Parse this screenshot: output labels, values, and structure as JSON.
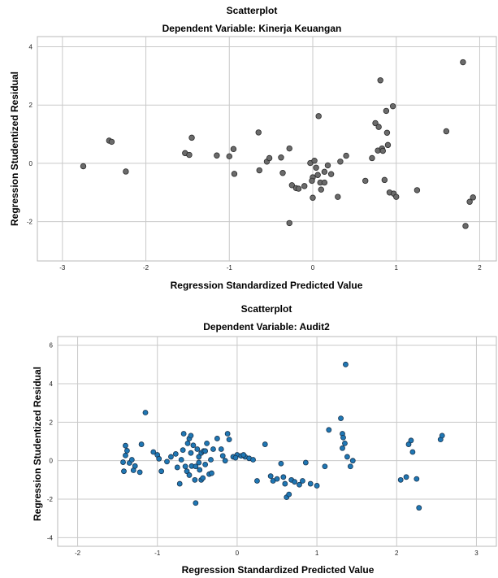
{
  "chart_data": [
    {
      "type": "scatter",
      "title": "Scatterplot",
      "subtitle": "Dependent Variable: Kinerja Keuangan",
      "xlabel": "Regression Standardized Predicted Value",
      "ylabel": "Regression Studentized Residual",
      "xlim": [
        -3.3,
        2.2
      ],
      "ylim": [
        -3.35,
        4.35
      ],
      "xticks": [
        -3,
        -2,
        -1,
        0,
        1,
        2
      ],
      "yticks": [
        -2,
        0,
        2,
        4
      ],
      "xtick_labels": [
        "-3",
        "-2",
        "-1",
        "0",
        "1",
        "2"
      ],
      "ytick_labels": [
        "-2",
        "0",
        "2",
        "4"
      ],
      "grid": true,
      "point_color": "#6b6b6b",
      "points": [
        [
          -2.75,
          -0.1
        ],
        [
          -2.44,
          0.78
        ],
        [
          -2.41,
          0.74
        ],
        [
          -2.24,
          -0.28
        ],
        [
          -1.53,
          0.35
        ],
        [
          -1.48,
          0.29
        ],
        [
          -1.45,
          0.88
        ],
        [
          -1.15,
          0.27
        ],
        [
          -1.0,
          0.24
        ],
        [
          -0.95,
          0.49
        ],
        [
          -0.94,
          -0.36
        ],
        [
          -0.65,
          1.06
        ],
        [
          -0.64,
          -0.24
        ],
        [
          -0.55,
          0.06
        ],
        [
          -0.52,
          0.18
        ],
        [
          -0.38,
          0.2
        ],
        [
          -0.36,
          -0.33
        ],
        [
          -0.28,
          0.51
        ],
        [
          -0.25,
          -0.75
        ],
        [
          -0.2,
          -0.85
        ],
        [
          -0.17,
          -0.87
        ],
        [
          -0.1,
          -0.78
        ],
        [
          -0.03,
          0.01
        ],
        [
          0.0,
          -0.48
        ],
        [
          0.0,
          -1.18
        ],
        [
          -0.01,
          -0.6
        ],
        [
          0.02,
          0.09
        ],
        [
          0.04,
          -0.15
        ],
        [
          0.06,
          -0.4
        ],
        [
          0.07,
          1.62
        ],
        [
          0.09,
          -0.66
        ],
        [
          0.1,
          -0.9
        ],
        [
          0.14,
          -0.66
        ],
        [
          0.14,
          -0.29
        ],
        [
          0.18,
          -0.07
        ],
        [
          0.22,
          -0.37
        ],
        [
          0.3,
          -1.15
        ],
        [
          0.33,
          0.06
        ],
        [
          0.4,
          0.26
        ],
        [
          0.63,
          -0.6
        ],
        [
          0.71,
          0.18
        ],
        [
          0.75,
          1.38
        ],
        [
          0.78,
          0.44
        ],
        [
          0.79,
          1.25
        ],
        [
          0.81,
          2.85
        ],
        [
          0.83,
          0.51
        ],
        [
          0.84,
          0.43
        ],
        [
          0.86,
          -0.57
        ],
        [
          0.88,
          1.8
        ],
        [
          0.89,
          1.05
        ],
        [
          0.9,
          0.63
        ],
        [
          0.92,
          -1.0
        ],
        [
          0.96,
          1.96
        ],
        [
          0.97,
          -1.04
        ],
        [
          1.0,
          -1.15
        ],
        [
          1.25,
          -0.92
        ],
        [
          1.6,
          1.1
        ],
        [
          1.8,
          3.47
        ],
        [
          1.83,
          -2.15
        ],
        [
          1.88,
          -1.32
        ],
        [
          1.92,
          -1.17
        ],
        [
          -0.28,
          -2.05
        ]
      ]
    },
    {
      "type": "scatter",
      "title": "Scatterplot",
      "subtitle": "Dependent Variable: Audit2",
      "xlabel": "Regression Standardized Predicted Value",
      "ylabel": "Regression Studentized Residual",
      "xlim": [
        -2.25,
        3.25
      ],
      "ylim": [
        -4.45,
        6.45
      ],
      "xticks": [
        -2,
        -1,
        0,
        1,
        2,
        3
      ],
      "yticks": [
        -4,
        -2,
        0,
        2,
        4,
        6
      ],
      "xtick_labels": [
        "-2",
        "-1",
        "0",
        "1",
        "2",
        "3"
      ],
      "ytick_labels": [
        "-4",
        "-2",
        "0",
        "2",
        "4",
        "6"
      ],
      "grid": true,
      "point_color": "#1f77b4",
      "points": [
        [
          -1.43,
          -0.08
        ],
        [
          -1.4,
          0.27
        ],
        [
          -1.38,
          0.52
        ],
        [
          -1.35,
          -0.12
        ],
        [
          -1.32,
          0.05
        ],
        [
          -1.3,
          -0.5
        ],
        [
          -1.28,
          -0.28
        ],
        [
          -1.4,
          0.78
        ],
        [
          -1.42,
          -0.55
        ],
        [
          -1.22,
          -0.6
        ],
        [
          -1.2,
          0.85
        ],
        [
          -1.15,
          2.5
        ],
        [
          -1.05,
          0.45
        ],
        [
          -1.0,
          0.3
        ],
        [
          -0.98,
          0.1
        ],
        [
          -0.95,
          -0.55
        ],
        [
          -0.88,
          -0.05
        ],
        [
          -0.75,
          -0.35
        ],
        [
          -0.72,
          -1.2
        ],
        [
          -0.7,
          0.05
        ],
        [
          -0.68,
          0.55
        ],
        [
          -0.67,
          1.4
        ],
        [
          -0.65,
          -0.3
        ],
        [
          -0.63,
          -0.55
        ],
        [
          -0.6,
          1.15
        ],
        [
          -0.6,
          -0.75
        ],
        [
          -0.58,
          0.4
        ],
        [
          -0.57,
          -0.28
        ],
        [
          -0.55,
          0.8
        ],
        [
          -0.53,
          -1.0
        ],
        [
          -0.52,
          -0.3
        ],
        [
          -0.5,
          0.6
        ],
        [
          -0.48,
          0.2
        ],
        [
          -0.47,
          -0.48
        ],
        [
          -0.45,
          0.4
        ],
        [
          -0.45,
          -1.0
        ],
        [
          -0.43,
          -0.9
        ],
        [
          -0.42,
          0.5
        ],
        [
          -0.4,
          -0.2
        ],
        [
          -0.38,
          0.9
        ],
        [
          -0.35,
          -0.7
        ],
        [
          -0.33,
          0.05
        ],
        [
          -0.3,
          0.6
        ],
        [
          -0.52,
          -2.2
        ],
        [
          -0.25,
          1.15
        ],
        [
          -0.2,
          0.6
        ],
        [
          -0.15,
          0.0
        ],
        [
          -0.12,
          1.4
        ],
        [
          -0.1,
          1.1
        ],
        [
          -0.05,
          0.2
        ],
        [
          0.0,
          0.3
        ],
        [
          0.05,
          0.25
        ],
        [
          0.1,
          0.2
        ],
        [
          0.15,
          0.12
        ],
        [
          0.2,
          0.05
        ],
        [
          0.25,
          -1.05
        ],
        [
          0.35,
          0.85
        ],
        [
          0.45,
          -1.05
        ],
        [
          0.5,
          -0.95
        ],
        [
          0.55,
          -0.15
        ],
        [
          0.58,
          -0.85
        ],
        [
          0.6,
          -1.2
        ],
        [
          0.62,
          -1.9
        ],
        [
          0.65,
          -1.75
        ],
        [
          0.68,
          -1.0
        ],
        [
          0.72,
          -1.1
        ],
        [
          0.78,
          -1.25
        ],
        [
          0.82,
          -1.05
        ],
        [
          0.86,
          -0.1
        ],
        [
          0.92,
          -1.2
        ],
        [
          1.0,
          -1.3
        ],
        [
          1.1,
          -0.3
        ],
        [
          1.15,
          1.6
        ],
        [
          1.3,
          2.2
        ],
        [
          1.32,
          1.4
        ],
        [
          1.33,
          1.2
        ],
        [
          1.35,
          0.9
        ],
        [
          1.36,
          5.0
        ],
        [
          1.38,
          0.2
        ],
        [
          1.42,
          -0.3
        ],
        [
          1.45,
          0.0
        ],
        [
          1.32,
          0.65
        ],
        [
          2.05,
          -1.0
        ],
        [
          2.12,
          -0.85
        ],
        [
          2.15,
          0.85
        ],
        [
          2.18,
          1.05
        ],
        [
          2.2,
          0.45
        ],
        [
          2.25,
          -0.95
        ],
        [
          2.28,
          -2.45
        ],
        [
          2.55,
          1.1
        ],
        [
          2.57,
          1.3
        ],
        [
          -0.83,
          0.2
        ],
        [
          -0.77,
          0.35
        ],
        [
          -0.62,
          0.9
        ],
        [
          -0.58,
          1.3
        ],
        [
          -0.48,
          -0.1
        ],
        [
          -0.4,
          0.5
        ],
        [
          -0.32,
          -0.65
        ],
        [
          -0.18,
          0.25
        ],
        [
          -0.02,
          0.15
        ],
        [
          0.08,
          0.3
        ],
        [
          0.42,
          -0.8
        ]
      ]
    }
  ]
}
